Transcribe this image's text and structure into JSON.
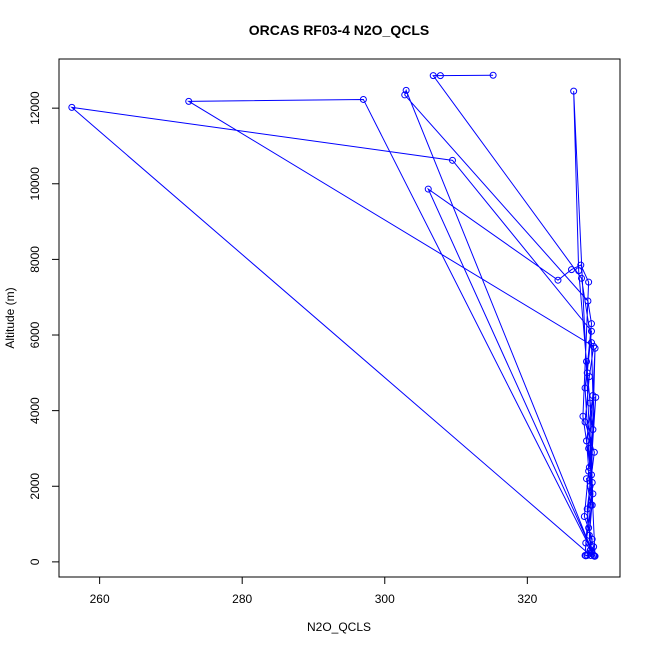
{
  "chart_data": {
    "type": "line",
    "title": "ORCAS RF03-4 N2O_QCLS",
    "xlabel": "N2O_QCLS",
    "ylabel": "Altitude (m)",
    "xlim": [
      254.3,
      333.0
    ],
    "ylim": [
      -400,
      13300
    ],
    "xticks": [
      260,
      280,
      300,
      320
    ],
    "yticks": [
      0,
      2000,
      4000,
      6000,
      8000,
      10000,
      12000
    ],
    "grid": false,
    "legend": "none",
    "color": "#0000ff",
    "series": [
      {
        "x": [
          315.2,
          307.8,
          306.8,
          327.6,
          329.0,
          329.2,
          328.3,
          328.8,
          329.1,
          328.2,
          329.3,
          303.0,
          302.8,
          328.5,
          329.0,
          328.1,
          328.6,
          329.2,
          328.7,
          328.9,
          328.4,
          329.4,
          297.0,
          272.5,
          329.3,
          328.7,
          328.1,
          329.4,
          328.4,
          329.0,
          328.2,
          329.5,
          326.5,
          327.2,
          328.3,
          328.8,
          329.1,
          328.6,
          329.3,
          328.9,
          256.1,
          309.5,
          329.0,
          328.4,
          329.2,
          328.6,
          328.0,
          329.1,
          328.8,
          329.4,
          306.1,
          324.3,
          326.2,
          327.5,
          328.6,
          327.8,
          329.0,
          328.3,
          328.9,
          329.5,
          328.7,
          329.6,
          328.1
        ],
        "y": [
          12870,
          12860,
          12860,
          7500,
          5800,
          4400,
          3200,
          2000,
          1500,
          500,
          180,
          12470,
          12350,
          6900,
          6300,
          4600,
          3000,
          1800,
          700,
          320,
          170,
          150,
          12230,
          12180,
          5700,
          4900,
          3700,
          2900,
          1400,
          260,
          160,
          150,
          12450,
          7700,
          5300,
          4200,
          2100,
          900,
          400,
          170,
          12020,
          10620,
          6100,
          5000,
          3500,
          2400,
          1200,
          600,
          300,
          160,
          9860,
          7450,
          7730,
          7850,
          7400,
          3850,
          2300,
          2200,
          1500,
          5650,
          2500,
          4350,
          170
        ]
      }
    ]
  }
}
